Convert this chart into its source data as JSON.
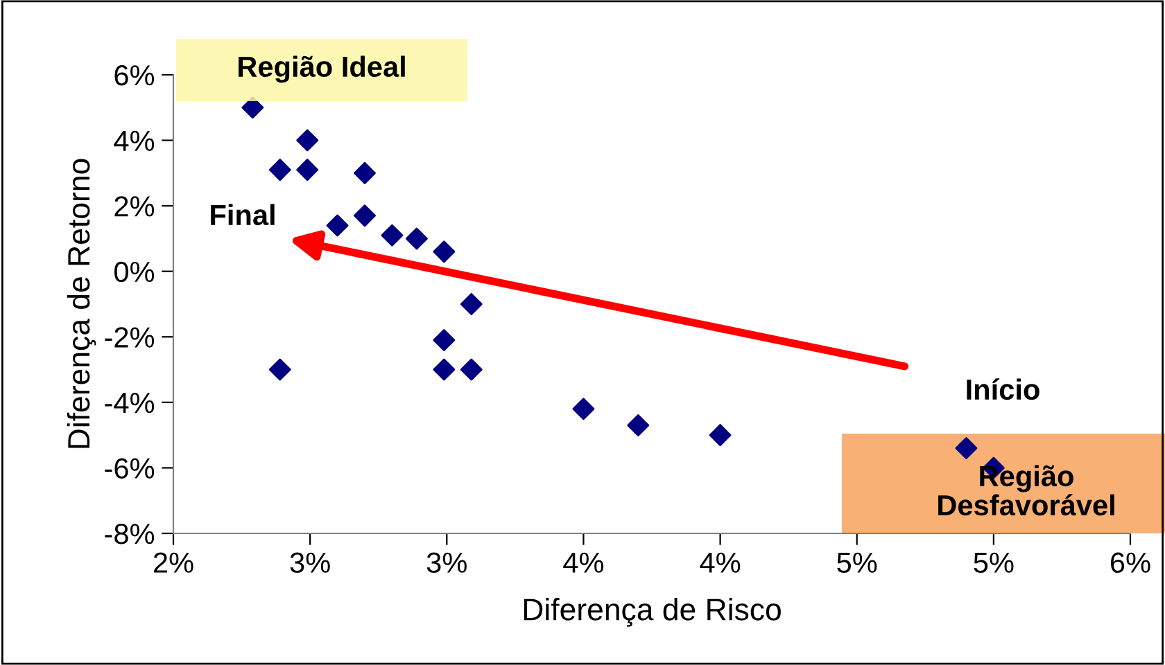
{
  "chart_data": {
    "type": "scatter",
    "xlabel": "Diferença de Risco",
    "ylabel": "Diferença de Retorno",
    "x": [
      2.29,
      2.39,
      2.49,
      2.49,
      2.7,
      2.7,
      2.6,
      2.8,
      2.89,
      2.99,
      3.09,
      2.99,
      2.39,
      2.99,
      3.09,
      3.5,
      3.7,
      4.0,
      4.9,
      5.0
    ],
    "series": [
      {
        "color": "#000080",
        "values": [
          5.0,
          3.1,
          4.0,
          3.1,
          3.0,
          1.7,
          1.4,
          1.1,
          1.0,
          0.6,
          -1.0,
          -2.1,
          -3.0,
          -3.0,
          -3.0,
          -4.2,
          -4.7,
          -5.0,
          -5.4,
          -6.0
        ]
      }
    ],
    "marker": "diamond",
    "grid": false,
    "legend": false,
    "xlim": [
      2,
      5.5
    ],
    "xticks": [
      {
        "value": 2,
        "label": "2%"
      },
      {
        "value": 2.5,
        "label": "3%"
      },
      {
        "value": 3,
        "label": "3%"
      },
      {
        "value": 3.5,
        "label": "4%"
      },
      {
        "value": 4,
        "label": "4%"
      },
      {
        "value": 4.5,
        "label": "5%"
      },
      {
        "value": 5,
        "label": "5%"
      },
      {
        "value": 5.5,
        "label": "6%"
      }
    ],
    "ylim": [
      -8,
      6
    ],
    "yticks": [
      {
        "value": -8,
        "label": "-8%"
      },
      {
        "value": -6,
        "label": "-6%"
      },
      {
        "value": -4,
        "label": "-4%"
      },
      {
        "value": -2,
        "label": "-2%"
      },
      {
        "value": 0,
        "label": "0%"
      },
      {
        "value": 2,
        "label": "2%"
      },
      {
        "value": 4,
        "label": "4%"
      },
      {
        "value": 6,
        "label": "6%"
      }
    ],
    "annotations": [
      "Região Ideal",
      "Final",
      "Início",
      "Região Desfavorável"
    ]
  }
}
